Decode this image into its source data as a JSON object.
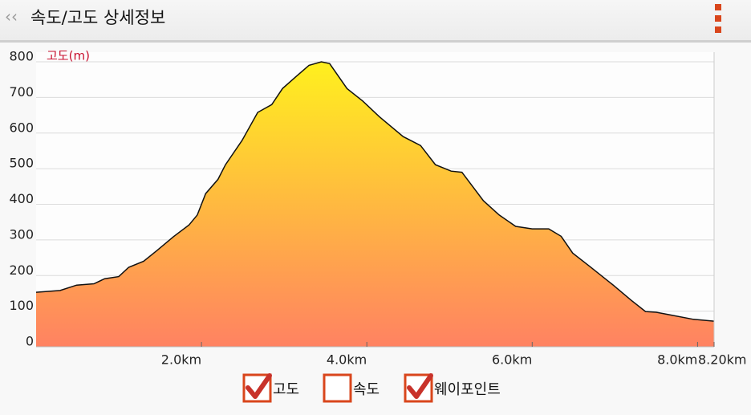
{
  "header": {
    "title": "속도/고도 상세정보"
  },
  "chart_data": {
    "type": "area",
    "y_label": "고도(m)",
    "x": [
      0,
      0.29,
      0.49,
      0.7,
      0.83,
      1.0,
      1.12,
      1.3,
      1.46,
      1.66,
      1.85,
      1.95,
      2.05,
      2.2,
      2.29,
      2.49,
      2.68,
      2.85,
      2.98,
      3.15,
      3.3,
      3.45,
      3.55,
      3.76,
      3.95,
      4.15,
      4.44,
      4.65,
      4.83,
      5.02,
      5.15,
      5.41,
      5.6,
      5.8,
      6.0,
      6.2,
      6.35,
      6.49,
      6.7,
      6.98,
      7.2,
      7.37,
      7.5,
      7.66,
      7.95,
      8.2
    ],
    "values": [
      153,
      158,
      173,
      177,
      191,
      197,
      223,
      240,
      270,
      309,
      342,
      370,
      430,
      470,
      511,
      579,
      658,
      680,
      725,
      760,
      790,
      800,
      795,
      725,
      690,
      646,
      590,
      565,
      511,
      493,
      490,
      410,
      370,
      338,
      331,
      331,
      310,
      263,
      225,
      173,
      130,
      99,
      97,
      90,
      77,
      72
    ],
    "xlim": [
      0,
      8.2
    ],
    "xticks": [
      {
        "value": 2,
        "label": "2.0km"
      },
      {
        "value": 4,
        "label": "4.0km"
      },
      {
        "value": 6,
        "label": "6.0km"
      },
      {
        "value": 8,
        "label": "8.0km"
      },
      {
        "value": 8.2,
        "label": "8.20km"
      }
    ],
    "ylim": [
      0,
      800
    ],
    "yticks": [
      0,
      100,
      200,
      300,
      400,
      500,
      600,
      700,
      800
    ],
    "grid": true,
    "line_color": "#111111",
    "fill_top": "#fff01e",
    "fill_bottom": "#ff8262"
  },
  "toggles": [
    {
      "label": "고도",
      "checked": true
    },
    {
      "label": "속도",
      "checked": false
    },
    {
      "label": "웨이포인트",
      "checked": true
    }
  ]
}
